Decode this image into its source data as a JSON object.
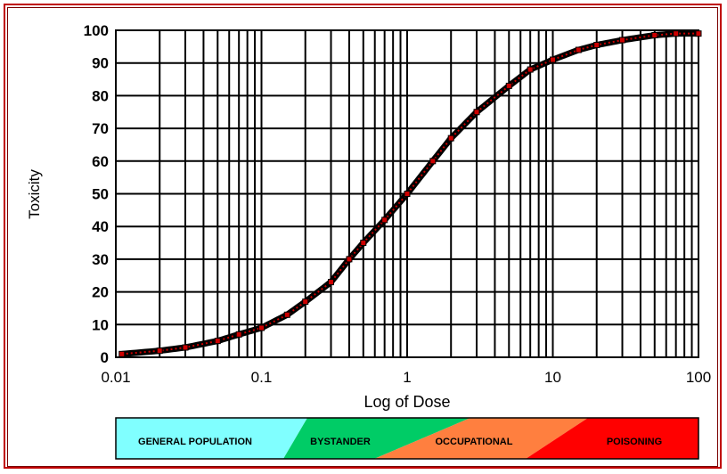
{
  "chart_data": {
    "type": "line",
    "title": "",
    "xlabel": "Log of Dose",
    "ylabel": "Toxicity",
    "x_scale": "log",
    "xlim": [
      0.01,
      100
    ],
    "ylim": [
      0,
      100
    ],
    "grid": true,
    "x_ticks": [
      "0.01",
      "0.1",
      "1",
      "10",
      "100"
    ],
    "y_ticks": [
      "0",
      "10",
      "20",
      "30",
      "40",
      "50",
      "60",
      "70",
      "80",
      "90",
      "100"
    ],
    "series": [
      {
        "color": "#cc0000",
        "x": [
          0.011,
          0.02,
          0.03,
          0.05,
          0.07,
          0.1,
          0.15,
          0.2,
          0.3,
          0.4,
          0.5,
          0.7,
          1,
          1.5,
          2,
          3,
          5,
          7,
          10,
          15,
          20,
          30,
          50,
          70,
          100
        ],
        "y": [
          1,
          2,
          3,
          5,
          7,
          9,
          13,
          17,
          23,
          30,
          35,
          42,
          50,
          60,
          67,
          75,
          83,
          88,
          91,
          94,
          95.5,
          97,
          98.5,
          99,
          99
        ]
      }
    ],
    "zones": [
      {
        "label": "GENERAL POPULATION",
        "color": "#80ffff"
      },
      {
        "label": "BYSTANDER",
        "color": "#00cc66"
      },
      {
        "label": "OCCUPATIONAL",
        "color": "#ff7f3f"
      },
      {
        "label": "POISONING",
        "color": "#ff0000"
      }
    ]
  }
}
